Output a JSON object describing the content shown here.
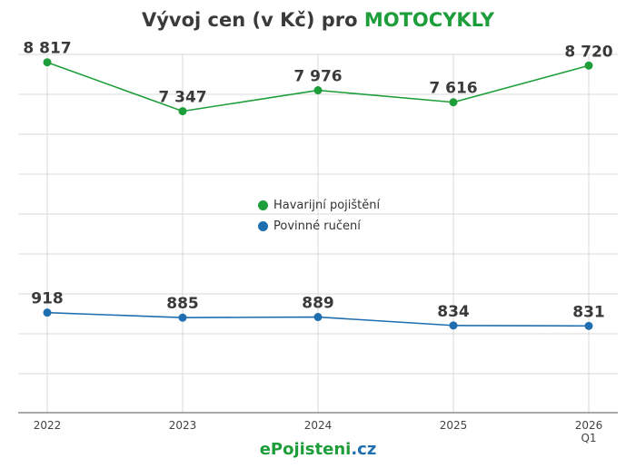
{
  "title": {
    "prefix": "Vývoj cen (v Kč) pro ",
    "highlight": "MOTOCYKLY"
  },
  "footer": {
    "part1": "e",
    "part2": "Pojisteni",
    "part3": ".cz"
  },
  "colors": {
    "green": "#1e9e3a",
    "blue": "#1f6fb0",
    "grid": "#d9d9d9",
    "text": "#3a3a3a"
  },
  "chart_data": {
    "type": "line",
    "categories": [
      "2022",
      "2023",
      "2024",
      "2025",
      "2026\nQ1"
    ],
    "series": [
      {
        "name": "Havarijní pojištění",
        "color": "#1e9e3a",
        "values": [
          8817,
          7347,
          7976,
          7616,
          8720
        ],
        "labels": [
          "8 817",
          "7 347",
          "7 976",
          "7 616",
          "8 720"
        ]
      },
      {
        "name": "Povinné ručení",
        "color": "#1f6fb0",
        "values": [
          918,
          885,
          889,
          834,
          831
        ],
        "labels": [
          "918",
          "885",
          "889",
          "834",
          "831"
        ]
      }
    ],
    "axis_break": true,
    "grid": true,
    "legend_position": "center"
  }
}
